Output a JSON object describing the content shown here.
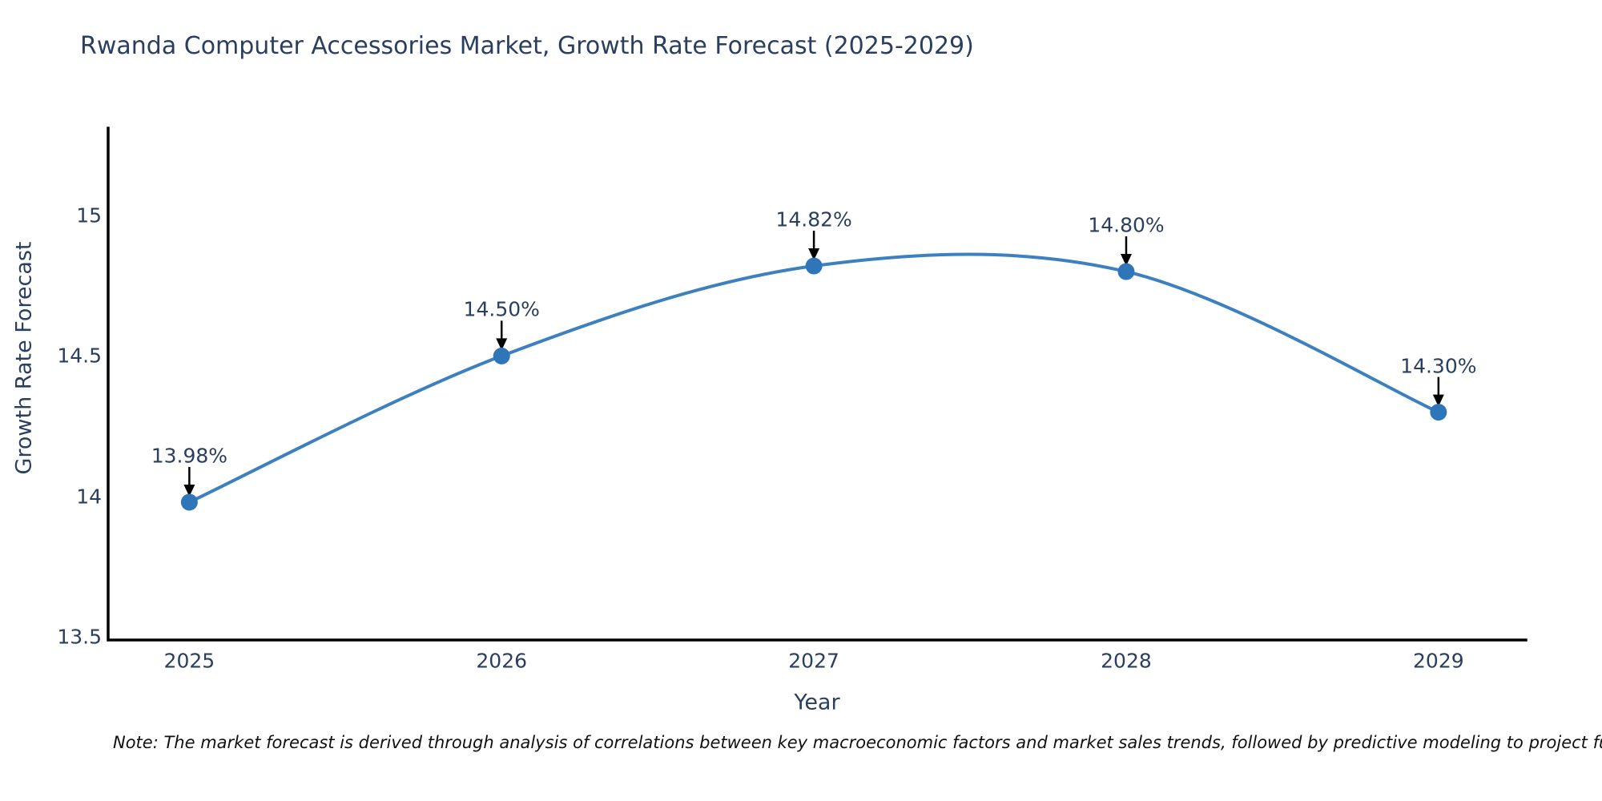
{
  "note": "Note: The market forecast is derived through analysis of correlations between key macroeconomic factors and market sales trends, followed by predictive modeling to project future sales.",
  "chart_data": {
    "type": "line",
    "title": "Rwanda Computer Accessories Market, Growth Rate Forecast (2025-2029)",
    "x": [
      2025,
      2026,
      2027,
      2028,
      2029
    ],
    "series": [
      {
        "name": "Growth Rate Forecast",
        "values": [
          13.98,
          14.5,
          14.82,
          14.8,
          14.3
        ]
      }
    ],
    "point_labels": [
      "13.98%",
      "14.50%",
      "14.82%",
      "14.80%",
      "14.30%"
    ],
    "xlabel": "Year",
    "ylabel": "Growth Rate Forecast",
    "x_tick_labels": [
      "2025",
      "2026",
      "2027",
      "2028",
      "2029"
    ],
    "y_tick_values": [
      13.5,
      14,
      14.5,
      15
    ],
    "y_tick_labels": [
      "13.5",
      "14",
      "14.5",
      "15"
    ],
    "xlim": [
      2024.74,
      2029.28
    ],
    "ylim": [
      13.49,
      15.31
    ],
    "grid": false,
    "legend_position": "none",
    "line_shape": "spline",
    "annotation_style": "arrow-down-to-point",
    "colors": {
      "line": "#3d80c0",
      "marker": "#2f76b8",
      "axis": "#000000",
      "text": "#2a3f5f",
      "annotation_arrow": "#000000",
      "background": "#ffffff"
    }
  }
}
